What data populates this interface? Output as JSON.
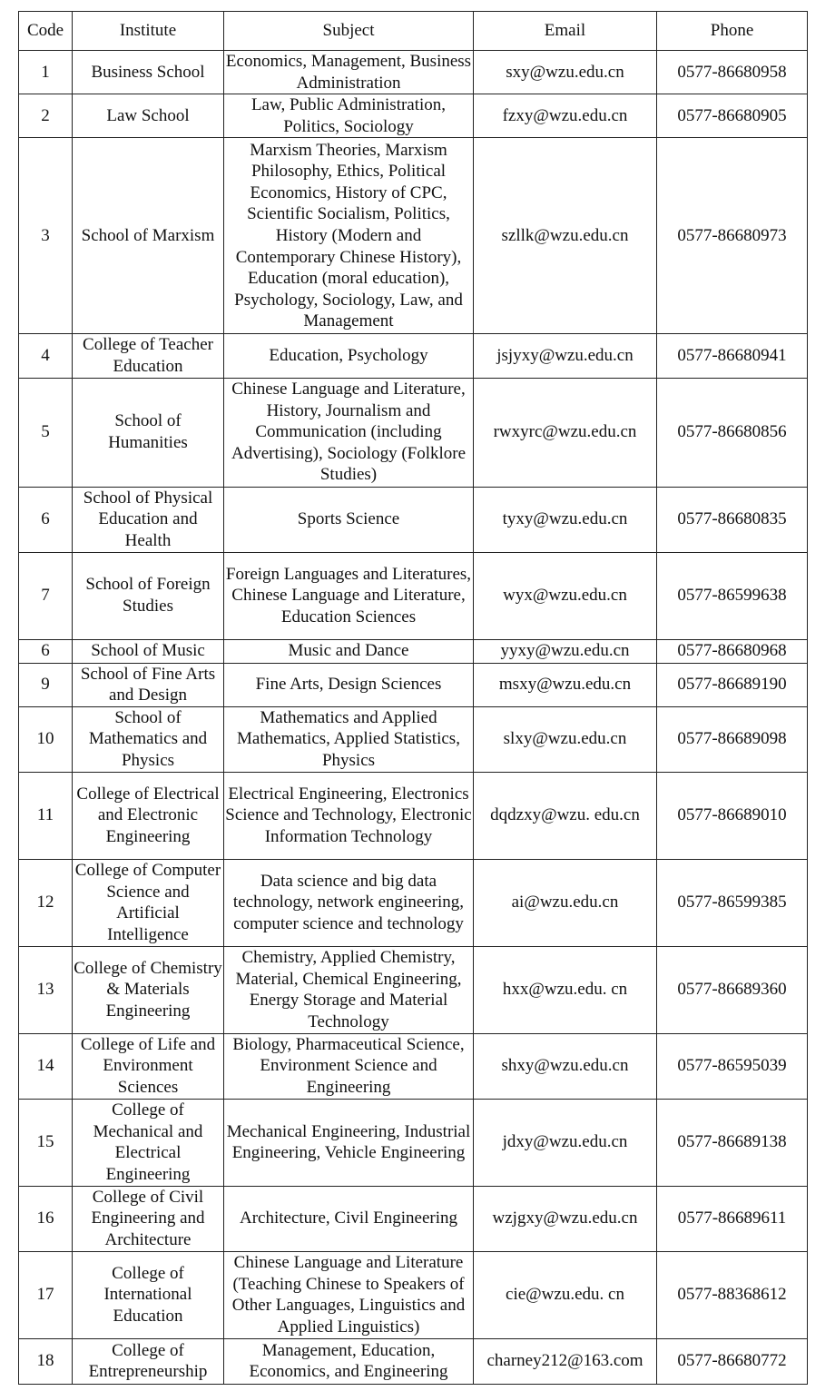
{
  "headers": [
    "Code",
    "Institute",
    "Subject",
    "Email",
    "Phone"
  ],
  "rows": [
    {
      "code": "1",
      "institute": "Business School",
      "subject": "Economics, Management, Business Administration",
      "email": "sxy@wzu.edu.cn",
      "phone": "0577-86680958"
    },
    {
      "code": "2",
      "institute": "Law School",
      "subject": "Law, Public Administration, Politics, Sociology",
      "email": "fzxy@wzu.edu.cn",
      "phone": "0577-86680905"
    },
    {
      "code": "3",
      "institute": "School of Marxism",
      "subject": "Marxism Theories, Marxism Philosophy, Ethics, Political Economics, History of CPC, Scientific Socialism, Politics, History (Modern and Contemporary Chinese History), Education (moral education), Psychology, Sociology, Law, and Management",
      "email": "szllk@wzu.edu.cn",
      "phone": "0577-86680973"
    },
    {
      "code": "4",
      "institute": "College of Teacher Education",
      "subject": "Education, Psychology",
      "email": "jsjyxy@wzu.edu.cn",
      "phone": "0577-86680941"
    },
    {
      "code": "5",
      "institute": "School of Humanities",
      "subject": "Chinese Language and Literature, History, Journalism and Communication (including Advertising), Sociology (Folklore Studies)",
      "email": "rwxyrc@wzu.edu.cn",
      "phone": "0577-86680856"
    },
    {
      "code": "6",
      "institute": "School of Physical Education and Health",
      "subject": "Sports Science",
      "email": "tyxy@wzu.edu.cn",
      "phone": "0577-86680835"
    },
    {
      "code": "7",
      "institute": "School of Foreign Studies",
      "subject": "Foreign Languages and Literatures, Chinese Language and Literature, Education Sciences",
      "email": "wyx@wzu.edu.cn",
      "phone": "0577-86599638"
    },
    {
      "code": "6",
      "institute": "School of Music",
      "subject": "Music and Dance",
      "email": "yyxy@wzu.edu.cn",
      "phone": "0577-86680968"
    },
    {
      "code": "9",
      "institute": "School of Fine Arts and Design",
      "subject": "Fine Arts, Design Sciences",
      "email": "msxy@wzu.edu.cn",
      "phone": "0577-86689190"
    },
    {
      "code": "10",
      "institute": "School of Mathematics and Physics",
      "subject": "Mathematics and Applied Mathematics, Applied Statistics, Physics",
      "email": "slxy@wzu.edu.cn",
      "phone": "0577-86689098"
    },
    {
      "code": "11",
      "institute": "College of Electrical and Electronic Engineering",
      "subject": "Electrical Engineering, Electronics Science and Technology, Electronic Information Technology",
      "email": "dqdzxy@wzu. edu.cn",
      "phone": "0577-86689010"
    },
    {
      "code": "12",
      "institute": "College of Computer Science and Artificial Intelligence",
      "subject": "Data science and big data technology, network engineering, computer science and technology",
      "email": "ai@wzu.edu.cn",
      "phone": "0577-86599385"
    },
    {
      "code": "13",
      "institute": "College of Chemistry & Materials Engineering",
      "subject": "Chemistry, Applied Chemistry, Material, Chemical Engineering, Energy Storage and Material Technology",
      "email": "hxx@wzu.edu. cn",
      "phone": "0577-86689360"
    },
    {
      "code": "14",
      "institute": "College of Life and Environment Sciences",
      "subject": "Biology, Pharmaceutical Science, Environment Science and Engineering",
      "email": "shxy@wzu.edu.cn",
      "phone": "0577-86595039"
    },
    {
      "code": "15",
      "institute": "College of Mechanical and Electrical Engineering",
      "subject": "Mechanical Engineering, Industrial Engineering, Vehicle Engineering",
      "email": "jdxy@wzu.edu.cn",
      "phone": "0577-86689138"
    },
    {
      "code": "16",
      "institute": "College of Civil Engineering and Architecture",
      "subject": "Architecture, Civil Engineering",
      "email": "wzjgxy@wzu.edu.cn",
      "phone": "0577-86689611"
    },
    {
      "code": "17",
      "institute": "College of International Education",
      "subject": "Chinese Language and Literature (Teaching Chinese to Speakers of Other Languages, Linguistics and Applied Linguistics)",
      "email": "cie@wzu.edu. cn",
      "phone": "0577-88368612"
    },
    {
      "code": "18",
      "institute": "College of Entrepreneurship",
      "subject": "Management, Education, Economics, and Engineering",
      "email": "charney212@163.com",
      "phone": "0577-86680772"
    }
  ]
}
